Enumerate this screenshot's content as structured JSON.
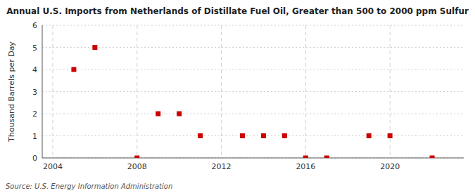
{
  "chart_data": {
    "type": "scatter",
    "title": "Annual U.S. Imports from Netherlands of Distillate Fuel Oil, Greater than 500 to 2000 ppm Sulfur",
    "y_label": "Thousand Barrels per Day",
    "annotations": [
      "Source: U.S. Energy Information Administration"
    ],
    "x": [
      2005,
      2006,
      2008,
      2009,
      2010,
      2011,
      2013,
      2014,
      2015,
      2016,
      2017,
      2019,
      2020,
      2022
    ],
    "values": [
      4,
      5,
      0,
      2,
      2,
      1,
      1,
      1,
      1,
      0,
      0,
      1,
      1,
      0
    ],
    "color": "#cc0000",
    "marker": "square",
    "xlim": [
      2003.5,
      2023.5
    ],
    "xticks": [
      2004,
      2008,
      2012,
      2016,
      2020
    ],
    "ylim": [
      0,
      6
    ],
    "yticks": [
      0,
      1,
      2,
      3,
      4,
      5,
      6
    ],
    "grid": true
  }
}
